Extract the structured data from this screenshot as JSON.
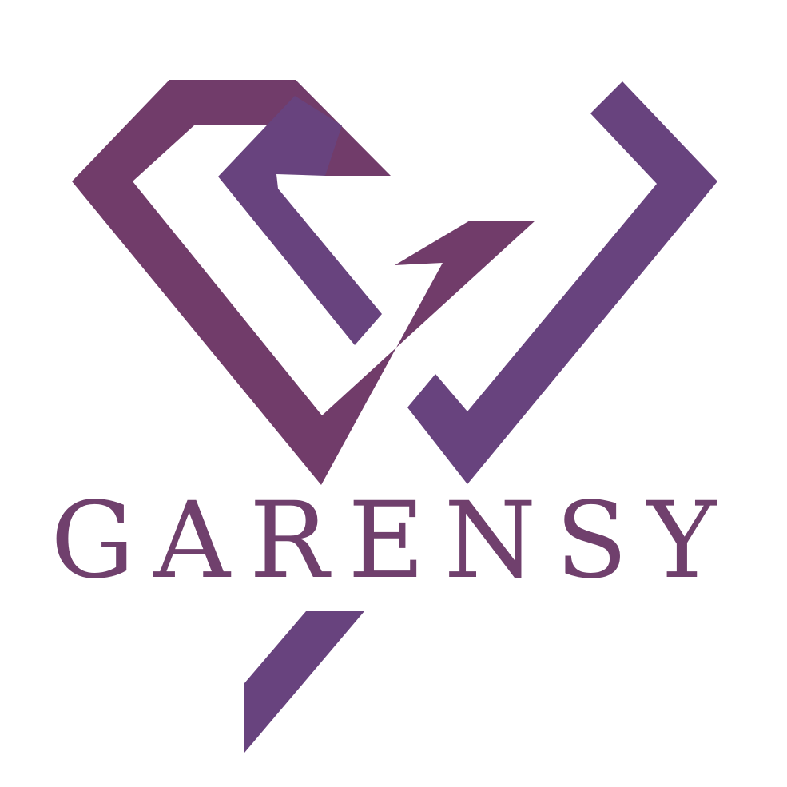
{
  "brand": {
    "name": "GARENSY"
  },
  "colors": {
    "background": "#ffffff",
    "plum": "#713c6a",
    "violet": "#68437e",
    "wordmark": "#70406d"
  },
  "icons": {
    "logo_mark": "diamond-g-monogram-icon"
  }
}
